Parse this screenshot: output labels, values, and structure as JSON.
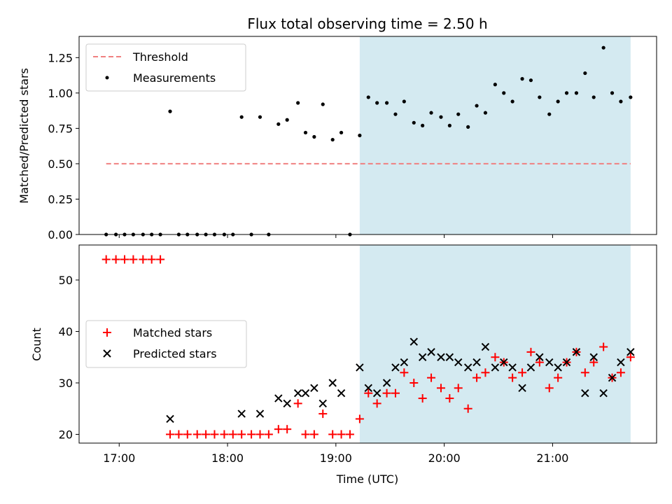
{
  "chart_data": [
    {
      "type": "scatter",
      "title": "Flux total observing time = 2.50 h",
      "ylabel": "Matched/Predicted stars",
      "ylim": [
        0,
        1.4
      ],
      "yticks": [
        "0.00",
        "0.25",
        "0.50",
        "0.75",
        "1.00",
        "1.25"
      ],
      "ytick_values": [
        0,
        0.25,
        0.5,
        0.75,
        1.0,
        1.25
      ],
      "xlim_hours": [
        16.63,
        21.96
      ],
      "highlight_span_hours": [
        19.22,
        21.72
      ],
      "highlight_color": "#d4eaf1",
      "legend_position": "upper-left",
      "threshold": {
        "name": "Threshold",
        "value": 0.5,
        "x_range_hours": [
          16.88,
          21.72
        ],
        "color": "#f08080",
        "style": "dashed"
      },
      "series": [
        {
          "name": "Measurements",
          "color": "#000000",
          "marker": "dot",
          "x_hours": [
            16.88,
            16.97,
            17.05,
            17.13,
            17.22,
            17.3,
            17.38,
            17.47,
            17.55,
            17.63,
            17.72,
            17.8,
            17.88,
            17.97,
            18.05,
            18.13,
            18.22,
            18.3,
            18.38,
            18.47,
            18.55,
            18.65,
            18.72,
            18.8,
            18.88,
            18.97,
            19.05,
            19.13,
            19.22,
            19.3,
            19.38,
            19.47,
            19.55,
            19.63,
            19.72,
            19.8,
            19.88,
            19.97,
            20.05,
            20.13,
            20.22,
            20.3,
            20.38,
            20.47,
            20.55,
            20.63,
            20.72,
            20.8,
            20.88,
            20.97,
            21.05,
            21.13,
            21.22,
            21.3,
            21.38,
            21.47,
            21.55,
            21.63,
            21.72
          ],
          "values": [
            0,
            0,
            0,
            0,
            0,
            0,
            0,
            0.87,
            0,
            0,
            0,
            0,
            0,
            0,
            0,
            0.83,
            0,
            0.83,
            0,
            0.78,
            0.81,
            0.93,
            0.72,
            0.69,
            0.92,
            0.67,
            0.72,
            0,
            0.7,
            0.97,
            0.93,
            0.93,
            0.85,
            0.94,
            0.79,
            0.77,
            0.86,
            0.83,
            0.77,
            0.85,
            0.76,
            0.91,
            0.86,
            1.06,
            1.0,
            0.94,
            1.1,
            1.09,
            0.97,
            0.85,
            0.94,
            1.0,
            1.0,
            1.14,
            0.97,
            1.32,
            1.0,
            0.94,
            0.97
          ]
        }
      ]
    },
    {
      "type": "scatter",
      "xlabel": "Time (UTC)",
      "ylabel": "Count",
      "ylim": [
        18.3,
        56.8
      ],
      "yticks": [
        "20",
        "30",
        "40",
        "50"
      ],
      "ytick_values": [
        20,
        30,
        40,
        50
      ],
      "xticks": [
        "17:00",
        "18:00",
        "19:00",
        "20:00",
        "21:00"
      ],
      "xtick_values_hours": [
        17,
        18,
        19,
        20,
        21
      ],
      "xlim_hours": [
        16.63,
        21.96
      ],
      "highlight_span_hours": [
        19.22,
        21.72
      ],
      "highlight_color": "#d4eaf1",
      "legend_position": "center-left",
      "series": [
        {
          "name": "Matched stars",
          "color": "#ff0000",
          "marker": "plus",
          "x_hours": [
            16.88,
            16.97,
            17.05,
            17.13,
            17.22,
            17.3,
            17.38,
            17.47,
            17.55,
            17.63,
            17.72,
            17.8,
            17.88,
            17.97,
            18.05,
            18.13,
            18.22,
            18.3,
            18.38,
            18.47,
            18.55,
            18.65,
            18.72,
            18.8,
            18.88,
            18.97,
            19.05,
            19.13,
            19.22,
            19.3,
            19.38,
            19.47,
            19.55,
            19.63,
            19.72,
            19.8,
            19.88,
            19.97,
            20.05,
            20.13,
            20.22,
            20.3,
            20.38,
            20.47,
            20.55,
            20.63,
            20.72,
            20.8,
            20.88,
            20.97,
            21.05,
            21.13,
            21.22,
            21.3,
            21.38,
            21.47,
            21.55,
            21.63,
            21.72
          ],
          "values": [
            54,
            54,
            54,
            54,
            54,
            54,
            54,
            20,
            20,
            20,
            20,
            20,
            20,
            20,
            20,
            20,
            20,
            20,
            20,
            21,
            21,
            26,
            20,
            20,
            24,
            20,
            20,
            20,
            23,
            28,
            26,
            28,
            28,
            32,
            30,
            27,
            31,
            29,
            27,
            29,
            25,
            31,
            32,
            35,
            34,
            31,
            32,
            36,
            34,
            29,
            31,
            34,
            36,
            32,
            34,
            37,
            31,
            32,
            35
          ]
        },
        {
          "name": "Predicted stars",
          "color": "#000000",
          "marker": "x",
          "x_hours": [
            17.47,
            18.13,
            18.3,
            18.47,
            18.55,
            18.65,
            18.72,
            18.8,
            18.88,
            18.97,
            19.05,
            19.22,
            19.3,
            19.38,
            19.47,
            19.55,
            19.63,
            19.72,
            19.8,
            19.88,
            19.97,
            20.05,
            20.13,
            20.22,
            20.3,
            20.38,
            20.47,
            20.55,
            20.63,
            20.72,
            20.8,
            20.88,
            20.97,
            21.05,
            21.13,
            21.22,
            21.3,
            21.38,
            21.47,
            21.55,
            21.63,
            21.72
          ],
          "values": [
            23,
            24,
            24,
            27,
            26,
            28,
            28,
            29,
            26,
            30,
            28,
            33,
            29,
            28,
            30,
            33,
            34,
            38,
            35,
            36,
            35,
            35,
            34,
            33,
            34,
            37,
            33,
            34,
            33,
            29,
            33,
            35,
            34,
            33,
            34,
            36,
            28,
            35,
            28,
            31,
            34,
            36
          ]
        }
      ]
    }
  ]
}
